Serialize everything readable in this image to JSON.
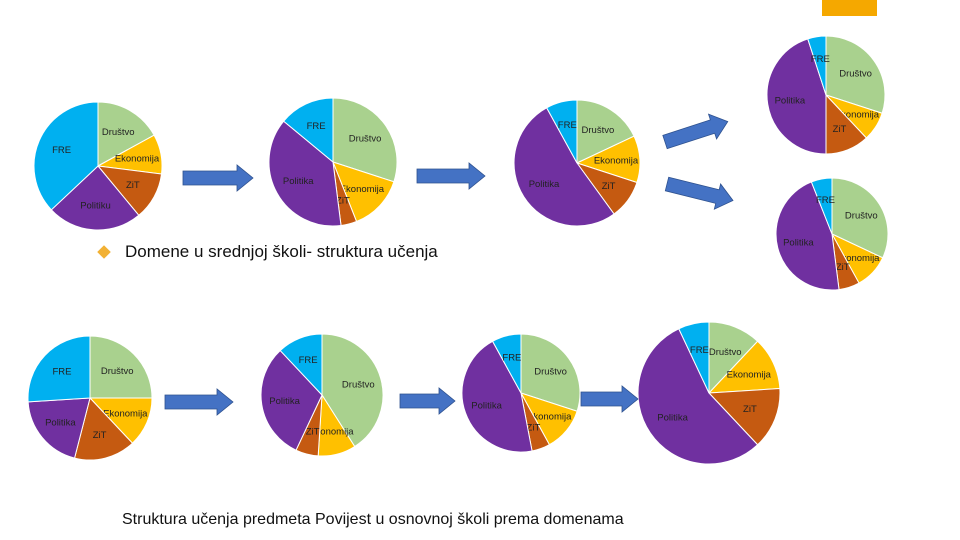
{
  "captions": {
    "high_school": "Domene u srednjoj školi- struktura učenja",
    "primary_school": "Struktura učenja predmeta Povijest u osnovnoj školi prema domenama"
  },
  "colors": {
    "Društvo": "#a9d18e",
    "Ekonomija": "#ffc000",
    "ZiT": "#c55a11",
    "Politika": "#7030a0",
    "FRE": "#00b0f0",
    "arrow": "#4472c4",
    "accent": "#f5a800",
    "bullet": "#f2b134"
  },
  "chart_data": [
    {
      "type": "pie",
      "group": "srednja",
      "labels": [
        "Društvo",
        "Ekonomija",
        "ZiT",
        "Politiku",
        "FRE"
      ],
      "values": [
        17,
        10,
        12,
        24,
        37
      ]
    },
    {
      "type": "pie",
      "group": "srednja",
      "labels": [
        "Društvo",
        "Ekonomija",
        "ZiT",
        "Politika",
        "FRE"
      ],
      "values": [
        30,
        14,
        4,
        38,
        14
      ]
    },
    {
      "type": "pie",
      "group": "srednja",
      "labels": [
        "Društvo",
        "Ekonomija",
        "ZiT",
        "Politika",
        "FRE"
      ],
      "values": [
        18,
        12,
        10,
        52,
        8
      ]
    },
    {
      "type": "pie",
      "group": "srednja",
      "labels": [
        "Društvo",
        "Ekonomija",
        "ZiT",
        "Politika",
        "FRE"
      ],
      "values": [
        30,
        8,
        12,
        45,
        5
      ]
    },
    {
      "type": "pie",
      "group": "srednja",
      "labels": [
        "Društvo",
        "Ekonomija",
        "ZiT",
        "Politika",
        "FRE"
      ],
      "values": [
        32,
        10,
        6,
        46,
        6
      ]
    },
    {
      "type": "pie",
      "group": "osnovna",
      "labels": [
        "Društvo",
        "Ekonomija",
        "ZiT",
        "Politika",
        "FRE"
      ],
      "values": [
        25,
        13,
        16,
        20,
        26
      ]
    },
    {
      "type": "pie",
      "group": "osnovna",
      "labels": [
        "Društvo",
        "Ekonomija",
        "ZiT",
        "Politika",
        "FRE"
      ],
      "values": [
        41,
        10,
        6,
        31,
        12
      ]
    },
    {
      "type": "pie",
      "group": "osnovna",
      "labels": [
        "Društvo",
        "Ekonomija",
        "ZiT",
        "Politika",
        "FRE"
      ],
      "values": [
        30,
        12,
        5,
        45,
        8
      ]
    },
    {
      "type": "pie",
      "group": "osnovna",
      "labels": [
        "Društvo",
        "Ekonomija",
        "ZiT",
        "Politika",
        "FRE"
      ],
      "values": [
        12,
        12,
        14,
        55,
        7
      ]
    }
  ]
}
